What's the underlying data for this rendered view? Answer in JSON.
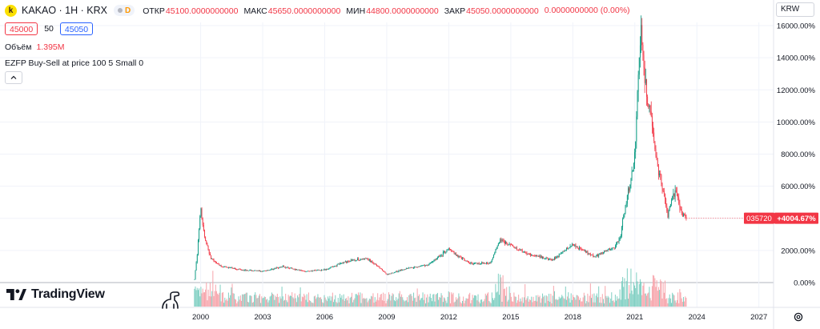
{
  "header": {
    "symbol_logo_letter": "k",
    "symbol_title": "KAKAO · 1H · KRX",
    "status_label": "D",
    "ohlc": [
      {
        "label": "ОТКР",
        "value": "45100.0000000000"
      },
      {
        "label": "МАКС",
        "value": "45650.0000000000"
      },
      {
        "label": "МИН",
        "value": "44800.0000000000"
      },
      {
        "label": "ЗАКР",
        "value": "45050.0000000000"
      }
    ],
    "change": "0.0000000000 (0.00%)"
  },
  "trade": {
    "bid": "45000",
    "spread": "50",
    "ask": "45050"
  },
  "volume": {
    "label": "Объём",
    "value": "1.395M"
  },
  "indicator": {
    "label": "EZFP Buy-Sell at price 100 5 Small 0"
  },
  "currency": {
    "label": "KRW"
  },
  "watermark": {
    "text": "TradingView"
  },
  "colors": {
    "up": "#089981",
    "down": "#f23645",
    "up_volume": "#7fcfc2",
    "down_volume": "#f7a4ab",
    "grid": "#f0f3fa",
    "zero_line": "#b2b5be",
    "price_label_bg": "#f23645"
  },
  "chart_data": {
    "type": "candlestick",
    "y_axis_unit": "%",
    "y_ticks": [
      "16000.00%",
      "14000.00%",
      "12000.00%",
      "10000.00%",
      "8000.00%",
      "6000.00%",
      "4000.00%",
      "2000.00%",
      "0.00%"
    ],
    "y_range": [
      0,
      16000
    ],
    "x_ticks": [
      "2000",
      "2003",
      "2006",
      "2009",
      "2012",
      "2015",
      "2018",
      "2021",
      "2024",
      "2027"
    ],
    "x_range": [
      1999.9,
      2027.4
    ],
    "data_start": 1999.7,
    "data_end": 2023.5,
    "last_label": {
      "symbol": "035720",
      "value": "+4004.67%",
      "y": 4004.67
    },
    "price_path": [
      [
        1999.7,
        200
      ],
      [
        1999.85,
        2000
      ],
      [
        2000.0,
        4800
      ],
      [
        2000.1,
        3500
      ],
      [
        2000.25,
        2500
      ],
      [
        2000.5,
        1500
      ],
      [
        2001.0,
        1000
      ],
      [
        2002.0,
        800
      ],
      [
        2003.0,
        700
      ],
      [
        2004.0,
        1000
      ],
      [
        2005.0,
        700
      ],
      [
        2006.0,
        800
      ],
      [
        2007.0,
        1300
      ],
      [
        2008.0,
        1500
      ],
      [
        2008.5,
        1100
      ],
      [
        2009.0,
        500
      ],
      [
        2010.0,
        900
      ],
      [
        2011.0,
        1100
      ],
      [
        2012.0,
        2100
      ],
      [
        2012.5,
        1600
      ],
      [
        2013.0,
        1200
      ],
      [
        2014.0,
        1200
      ],
      [
        2014.5,
        2700
      ],
      [
        2015.0,
        2300
      ],
      [
        2016.0,
        1700
      ],
      [
        2017.0,
        1400
      ],
      [
        2018.0,
        2400
      ],
      [
        2019.0,
        1600
      ],
      [
        2020.0,
        2200
      ],
      [
        2020.3,
        2800
      ],
      [
        2020.5,
        4500
      ],
      [
        2020.8,
        6300
      ],
      [
        2021.0,
        8000
      ],
      [
        2021.2,
        14000
      ],
      [
        2021.3,
        15500
      ],
      [
        2021.5,
        12500
      ],
      [
        2021.8,
        10000
      ],
      [
        2022.0,
        8000
      ],
      [
        2022.4,
        5500
      ],
      [
        2022.6,
        4200
      ],
      [
        2022.8,
        5400
      ],
      [
        2023.0,
        5500
      ],
      [
        2023.3,
        4300
      ],
      [
        2023.5,
        4004
      ]
    ]
  }
}
